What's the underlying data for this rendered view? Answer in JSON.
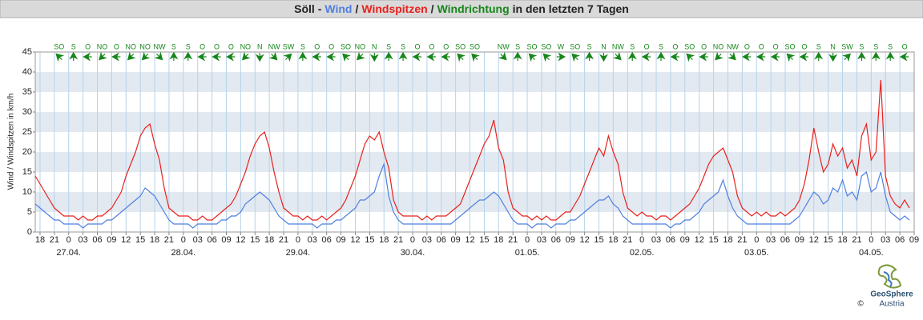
{
  "chart_data": {
    "type": "line",
    "title": {
      "prefix": "Söll -",
      "separator": "/",
      "suffix": "in den letzten 7 Tagen"
    },
    "y_label": "Wind / Windspitzen in km/h",
    "x": [
      -7,
      -6,
      -5,
      -4,
      -3,
      -2,
      -1,
      0,
      1,
      2,
      3,
      4,
      5,
      6,
      7,
      8,
      9,
      10,
      11,
      12,
      13,
      14,
      15,
      16,
      17,
      18,
      19,
      20,
      21,
      22,
      23,
      24,
      25,
      26,
      27,
      28,
      29,
      30,
      31,
      32,
      33,
      34,
      35,
      36,
      37,
      38,
      39,
      40,
      41,
      42,
      43,
      44,
      45,
      46,
      47,
      48,
      49,
      50,
      51,
      52,
      53,
      54,
      55,
      56,
      57,
      58,
      59,
      60,
      61,
      62,
      63,
      64,
      65,
      66,
      67,
      68,
      69,
      70,
      71,
      72,
      73,
      74,
      75,
      76,
      77,
      78,
      79,
      80,
      81,
      82,
      83,
      84,
      85,
      86,
      87,
      88,
      89,
      90,
      91,
      92,
      93,
      94,
      95,
      96,
      97,
      98,
      99,
      100,
      101,
      102,
      103,
      104,
      105,
      106,
      107,
      108,
      109,
      110,
      111,
      112,
      113,
      114,
      115,
      116,
      117,
      118,
      119,
      120,
      121,
      122,
      123,
      124,
      125,
      126,
      127,
      128,
      129,
      130,
      131,
      132,
      133,
      134,
      135,
      136,
      137,
      138,
      139,
      140,
      141,
      142,
      143,
      144,
      145,
      146,
      147,
      148,
      149,
      150,
      151,
      152,
      153,
      154,
      155,
      156,
      157,
      158,
      159,
      160,
      161,
      162,
      163,
      164,
      165,
      166,
      167,
      168,
      169,
      170,
      171,
      172,
      173,
      174,
      175,
      176
    ],
    "series": [
      {
        "name": "Wind",
        "color": "#4f7fe0",
        "values": [
          7,
          6,
          5,
          4,
          3,
          3,
          2,
          2,
          2,
          2,
          1,
          2,
          2,
          2,
          2,
          3,
          3,
          4,
          5,
          6,
          7,
          8,
          9,
          11,
          10,
          9,
          7,
          5,
          3,
          2,
          2,
          2,
          2,
          1,
          2,
          2,
          2,
          2,
          2,
          3,
          3,
          4,
          4,
          5,
          7,
          8,
          9,
          10,
          9,
          8,
          6,
          4,
          3,
          2,
          2,
          2,
          2,
          2,
          2,
          1,
          2,
          2,
          2,
          3,
          3,
          4,
          5,
          6,
          8,
          8,
          9,
          10,
          14,
          17,
          9,
          5,
          3,
          2,
          2,
          2,
          2,
          2,
          2,
          2,
          2,
          2,
          2,
          2,
          3,
          4,
          5,
          6,
          7,
          8,
          8,
          9,
          10,
          9,
          7,
          5,
          3,
          2,
          2,
          2,
          1,
          2,
          2,
          2,
          1,
          2,
          2,
          2,
          3,
          3,
          4,
          5,
          6,
          7,
          8,
          8,
          9,
          7,
          6,
          4,
          3,
          2,
          2,
          2,
          2,
          2,
          2,
          2,
          2,
          1,
          2,
          2,
          3,
          3,
          4,
          5,
          7,
          8,
          9,
          10,
          13,
          9,
          6,
          4,
          3,
          2,
          2,
          2,
          2,
          2,
          2,
          2,
          2,
          2,
          2,
          3,
          4,
          6,
          8,
          10,
          9,
          7,
          8,
          11,
          10,
          13,
          9,
          10,
          8,
          14,
          15,
          10,
          11,
          15,
          9,
          5,
          4,
          3,
          4,
          3
        ]
      },
      {
        "name": "Windspitzen",
        "color": "#e8201c",
        "values": [
          14,
          12,
          10,
          8,
          6,
          5,
          4,
          4,
          4,
          3,
          4,
          3,
          3,
          4,
          4,
          5,
          6,
          8,
          10,
          14,
          17,
          20,
          24,
          26,
          27,
          22,
          18,
          11,
          6,
          5,
          4,
          4,
          4,
          3,
          3,
          4,
          3,
          3,
          4,
          5,
          6,
          7,
          9,
          12,
          15,
          19,
          22,
          24,
          25,
          21,
          15,
          10,
          6,
          5,
          4,
          4,
          3,
          4,
          3,
          3,
          4,
          3,
          4,
          5,
          6,
          8,
          11,
          14,
          18,
          22,
          24,
          23,
          25,
          20,
          16,
          8,
          5,
          4,
          4,
          4,
          4,
          3,
          4,
          3,
          4,
          4,
          4,
          5,
          6,
          7,
          10,
          13,
          16,
          19,
          22,
          24,
          28,
          21,
          18,
          10,
          6,
          5,
          4,
          4,
          3,
          4,
          3,
          4,
          3,
          3,
          4,
          5,
          5,
          7,
          9,
          12,
          15,
          18,
          21,
          19,
          24,
          20,
          17,
          10,
          6,
          5,
          4,
          5,
          4,
          4,
          3,
          4,
          4,
          3,
          4,
          5,
          6,
          7,
          9,
          11,
          14,
          17,
          19,
          20,
          21,
          18,
          15,
          9,
          6,
          5,
          4,
          5,
          4,
          5,
          4,
          4,
          5,
          4,
          5,
          6,
          8,
          12,
          18,
          26,
          20,
          15,
          17,
          22,
          19,
          21,
          16,
          18,
          14,
          24,
          27,
          18,
          20,
          38,
          14,
          9,
          7,
          6,
          8,
          6
        ]
      }
    ],
    "direction": {
      "name": "Windrichtung",
      "color": "#16861a",
      "x": [
        -2,
        1,
        4,
        7,
        10,
        13,
        16,
        19,
        22,
        25,
        28,
        31,
        34,
        37,
        40,
        43,
        46,
        49,
        52,
        55,
        58,
        61,
        64,
        67,
        70,
        73,
        76,
        79,
        82,
        85,
        88,
        91,
        94,
        97,
        100,
        103,
        106,
        109,
        112,
        115,
        118,
        121,
        124,
        127,
        130,
        133,
        136,
        139,
        142,
        145,
        148,
        151,
        154,
        157,
        160,
        163,
        166,
        169,
        172,
        175
      ],
      "labels": [
        "SO",
        "S",
        "O",
        "NO",
        "O",
        "NO",
        "NO",
        "NW",
        "S",
        "S",
        "O",
        "O",
        "O",
        "NO",
        "N",
        "NW",
        "SW",
        "S",
        "O",
        "O",
        "SO",
        "NO",
        "N",
        "S",
        "S",
        "O",
        "O",
        "O",
        "SO",
        "SO",
        null,
        "NW",
        "S",
        "SO",
        "SO",
        "W",
        "SO",
        "S",
        "N",
        "NW",
        "S",
        "O",
        "S",
        "O",
        "SO",
        "O",
        "NO",
        "NW",
        "O",
        "O",
        "O",
        "SO",
        "O",
        "S",
        "N",
        "SW",
        "S",
        "S",
        "S",
        "O"
      ]
    },
    "xlim": [
      -7,
      177
    ],
    "xticks": [
      {
        "value": -6,
        "label": "18"
      },
      {
        "value": -3,
        "label": "21"
      },
      0,
      {
        "value": 3,
        "label": "03"
      },
      {
        "value": 6,
        "label": "06"
      },
      {
        "value": 9,
        "label": "09"
      },
      12,
      15,
      18,
      21,
      {
        "value": 24,
        "label": "0"
      },
      {
        "value": 27,
        "label": "03"
      },
      {
        "value": 30,
        "label": "06"
      },
      {
        "value": 33,
        "label": "09"
      },
      {
        "value": 36,
        "label": "12"
      },
      {
        "value": 39,
        "label": "15"
      },
      {
        "value": 42,
        "label": "18"
      },
      {
        "value": 45,
        "label": "21"
      },
      {
        "value": 48,
        "label": "0"
      },
      {
        "value": 51,
        "label": "03"
      },
      {
        "value": 54,
        "label": "06"
      },
      {
        "value": 57,
        "label": "09"
      },
      {
        "value": 60,
        "label": "12"
      },
      {
        "value": 63,
        "label": "15"
      },
      {
        "value": 66,
        "label": "18"
      },
      {
        "value": 69,
        "label": "21"
      },
      {
        "value": 72,
        "label": "0"
      },
      {
        "value": 75,
        "label": "03"
      },
      {
        "value": 78,
        "label": "06"
      },
      {
        "value": 81,
        "label": "09"
      },
      {
        "value": 84,
        "label": "12"
      },
      {
        "value": 87,
        "label": "15"
      },
      {
        "value": 90,
        "label": "18"
      },
      {
        "value": 93,
        "label": "21"
      },
      {
        "value": 96,
        "label": "0"
      },
      {
        "value": 99,
        "label": "03"
      },
      {
        "value": 102,
        "label": "06"
      },
      {
        "value": 105,
        "label": "09"
      },
      {
        "value": 108,
        "label": "12"
      },
      {
        "value": 111,
        "label": "15"
      },
      {
        "value": 114,
        "label": "18"
      },
      {
        "value": 117,
        "label": "21"
      },
      {
        "value": 120,
        "label": "0"
      },
      {
        "value": 123,
        "label": "03"
      },
      {
        "value": 126,
        "label": "06"
      },
      {
        "value": 129,
        "label": "09"
      },
      {
        "value": 132,
        "label": "12"
      },
      {
        "value": 135,
        "label": "15"
      },
      {
        "value": 138,
        "label": "18"
      },
      {
        "value": 141,
        "label": "21"
      },
      {
        "value": 144,
        "label": "0"
      },
      {
        "value": 147,
        "label": "03"
      },
      {
        "value": 150,
        "label": "06"
      },
      {
        "value": 153,
        "label": "09"
      },
      {
        "value": 156,
        "label": "12"
      },
      {
        "value": 159,
        "label": "15"
      },
      {
        "value": 162,
        "label": "18"
      },
      {
        "value": 165,
        "label": "21"
      },
      {
        "value": 168,
        "label": "0"
      },
      {
        "value": 171,
        "label": "03"
      },
      {
        "value": 174,
        "label": "06"
      },
      {
        "value": 177,
        "label": "09"
      }
    ],
    "date_ticks": [
      {
        "value": 0,
        "label": "27.04."
      },
      {
        "value": 24,
        "label": "28.04."
      },
      {
        "value": 48,
        "label": "29.04."
      },
      {
        "value": 72,
        "label": "30.04."
      },
      {
        "value": 96,
        "label": "01.05."
      },
      {
        "value": 120,
        "label": "02.05."
      },
      {
        "value": 144,
        "label": "03.05."
      },
      {
        "value": 168,
        "label": "04.05."
      }
    ],
    "ylim": [
      0,
      45
    ],
    "yticks": [
      0,
      5,
      10,
      15,
      20,
      25,
      30,
      35,
      40,
      45
    ],
    "grid": true,
    "bands": true,
    "credit": {
      "name": "GeoSphere",
      "sub": "Austria",
      "copyright": "©"
    }
  }
}
